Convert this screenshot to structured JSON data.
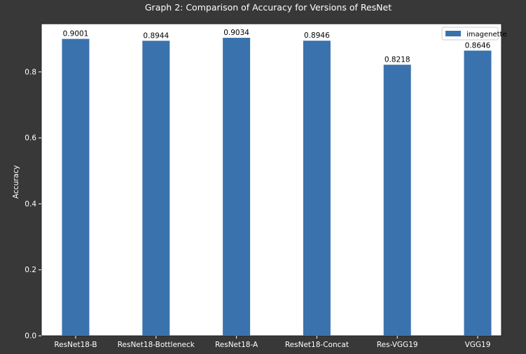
{
  "colors": {
    "page_background": "#383838",
    "plot_background": "#ffffff",
    "bar": "#3a72ad",
    "axis_text": "#ffffff",
    "data_label": "#000000"
  },
  "chart_data": {
    "type": "bar",
    "title": "Graph 2: Comparison of Accuracy for Versions of ResNet",
    "xlabel": "",
    "ylabel": "Accuracy",
    "categories": [
      "ResNet18-B",
      "ResNet18-Bottleneck",
      "ResNet18-A",
      "ResNet18-Concat",
      "Res-VGG19",
      "VGG19"
    ],
    "series": [
      {
        "name": "imagenette",
        "values": [
          0.9001,
          0.8944,
          0.9034,
          0.8946,
          0.8218,
          0.8646
        ]
      }
    ],
    "data_labels": [
      "0.9001",
      "0.8944",
      "0.9034",
      "0.8946",
      "0.8218",
      "0.8646"
    ],
    "ylim": [
      0,
      0.9459
    ],
    "yticks": [
      0.0,
      0.2,
      0.4,
      0.6,
      0.8
    ],
    "ytick_labels": [
      "0.0",
      "0.2",
      "0.4",
      "0.6",
      "0.8"
    ],
    "grid": false,
    "legend": {
      "position": "top-right",
      "entries": [
        "imagenette"
      ]
    }
  }
}
